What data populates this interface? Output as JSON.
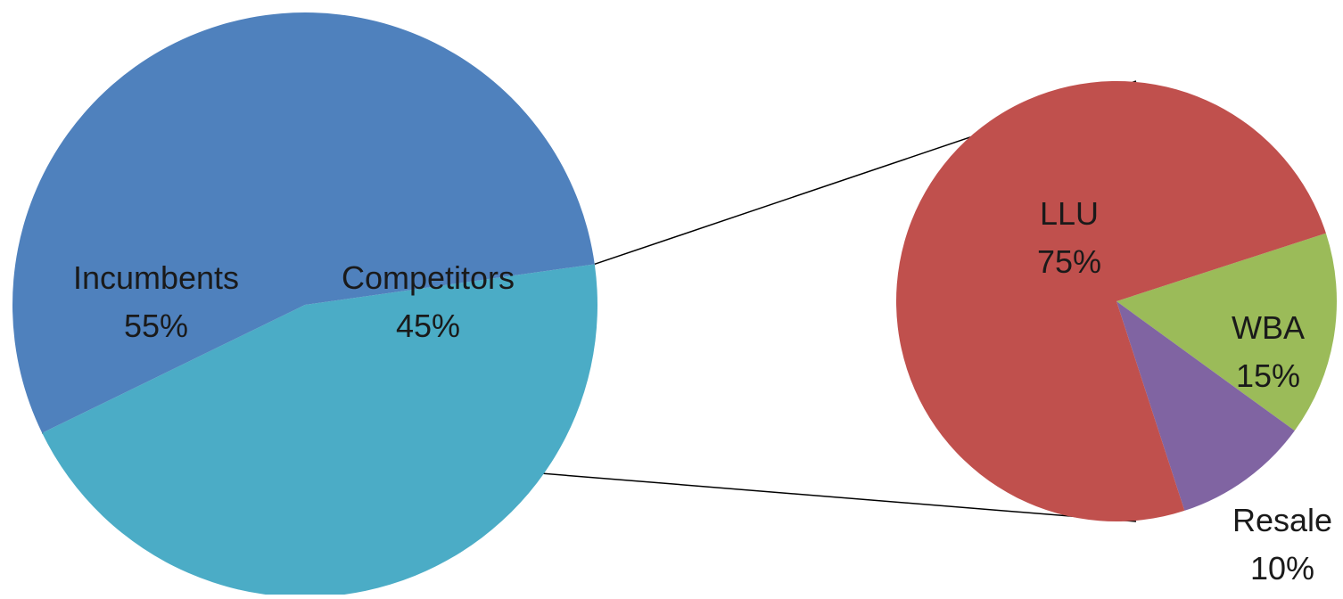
{
  "chart_data": {
    "type": "pie",
    "subtype": "pie-of-pie",
    "main": {
      "slices": [
        {
          "name": "Incumbents",
          "value": 55,
          "label": "55%",
          "color": "#4F81BD"
        },
        {
          "name": "Competitors",
          "value": 45,
          "label": "45%",
          "color": "#4BACC6"
        }
      ]
    },
    "breakdown": {
      "parent": "Competitors",
      "slices": [
        {
          "name": "LLU",
          "value": 75,
          "label": "75%",
          "color": "#C0504D"
        },
        {
          "name": "WBA",
          "value": 15,
          "label": "15%",
          "color": "#9BBB59"
        },
        {
          "name": "Resale",
          "value": 10,
          "label": "10%",
          "color": "#8064A2"
        }
      ]
    },
    "connector_color": "#000000",
    "legend": "none"
  }
}
